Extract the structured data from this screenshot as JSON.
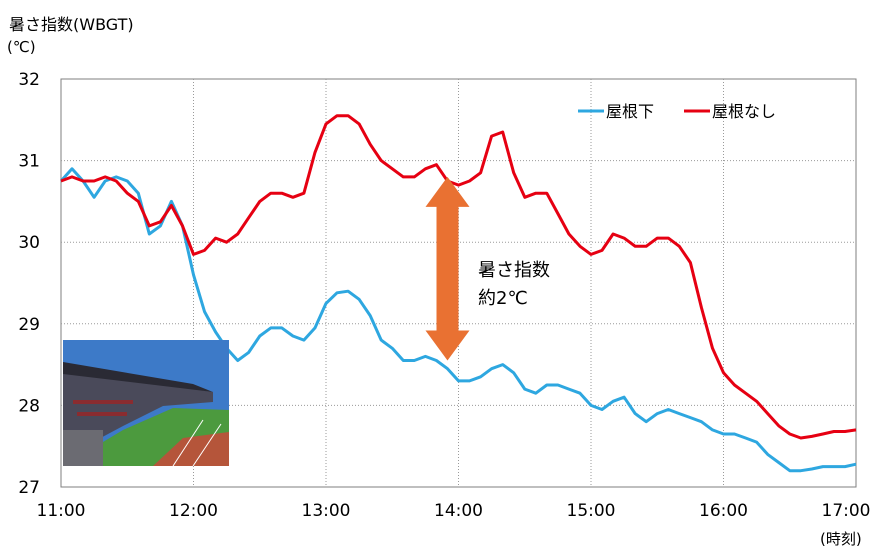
{
  "chart_data": {
    "type": "line",
    "ylabel": "暑さ指数(WBGT)",
    "yunit": "(℃)",
    "xunit": "(時刻)",
    "ylim": [
      27,
      32
    ],
    "xlim": [
      "11:00",
      "17:00"
    ],
    "yticks": [
      "27",
      "28",
      "29",
      "30",
      "31",
      "32"
    ],
    "xticks": [
      "11:00",
      "12:00",
      "13:00",
      "14:00",
      "15:00",
      "16:00",
      "17:00"
    ],
    "grid": "dotted",
    "legend_position": "top-right",
    "series": [
      {
        "name": "屋根下",
        "color": "#2ea7e0",
        "x": [
          "11:00",
          "11:05",
          "11:10",
          "11:15",
          "11:20",
          "11:25",
          "11:30",
          "11:35",
          "11:40",
          "11:45",
          "11:50",
          "11:55",
          "12:00",
          "12:05",
          "12:10",
          "12:15",
          "12:20",
          "12:25",
          "12:30",
          "12:35",
          "12:40",
          "12:45",
          "12:50",
          "12:55",
          "13:00",
          "13:05",
          "13:10",
          "13:15",
          "13:20",
          "13:25",
          "13:30",
          "13:35",
          "13:40",
          "13:45",
          "13:50",
          "13:55",
          "14:00",
          "14:05",
          "14:10",
          "14:15",
          "14:20",
          "14:25",
          "14:30",
          "14:35",
          "14:40",
          "14:45",
          "14:50",
          "14:55",
          "15:00",
          "15:05",
          "15:10",
          "15:15",
          "15:20",
          "15:25",
          "15:30",
          "15:35",
          "15:40",
          "15:45",
          "15:50",
          "15:55",
          "16:00",
          "16:05",
          "16:10",
          "16:15",
          "16:20",
          "16:25",
          "16:30",
          "16:35",
          "16:40",
          "16:45",
          "16:50",
          "16:55",
          "17:00"
        ],
        "values": [
          30.75,
          30.9,
          30.75,
          30.55,
          30.75,
          30.8,
          30.75,
          30.6,
          30.1,
          30.2,
          30.5,
          30.2,
          29.6,
          29.15,
          28.9,
          28.7,
          28.55,
          28.65,
          28.85,
          28.95,
          28.95,
          28.85,
          28.8,
          28.95,
          29.25,
          29.38,
          29.4,
          29.3,
          29.1,
          28.8,
          28.7,
          28.55,
          28.55,
          28.6,
          28.55,
          28.45,
          28.3,
          28.3,
          28.35,
          28.45,
          28.5,
          28.4,
          28.2,
          28.15,
          28.25,
          28.25,
          28.2,
          28.15,
          28.0,
          27.95,
          28.05,
          28.1,
          27.9,
          27.8,
          27.9,
          27.95,
          27.9,
          27.85,
          27.8,
          27.7,
          27.65,
          27.65,
          27.6,
          27.55,
          27.4,
          27.3,
          27.2,
          27.2,
          27.22,
          27.25,
          27.25,
          27.25,
          27.28
        ]
      },
      {
        "name": "屋根なし",
        "color": "#e60012",
        "x": [
          "11:00",
          "11:05",
          "11:10",
          "11:15",
          "11:20",
          "11:25",
          "11:30",
          "11:35",
          "11:40",
          "11:45",
          "11:50",
          "11:55",
          "12:00",
          "12:05",
          "12:10",
          "12:15",
          "12:20",
          "12:25",
          "12:30",
          "12:35",
          "12:40",
          "12:45",
          "12:50",
          "12:55",
          "13:00",
          "13:05",
          "13:10",
          "13:15",
          "13:20",
          "13:25",
          "13:30",
          "13:35",
          "13:40",
          "13:45",
          "13:50",
          "13:55",
          "14:00",
          "14:05",
          "14:10",
          "14:15",
          "14:20",
          "14:25",
          "14:30",
          "14:35",
          "14:40",
          "14:45",
          "14:50",
          "14:55",
          "15:00",
          "15:05",
          "15:10",
          "15:15",
          "15:20",
          "15:25",
          "15:30",
          "15:35",
          "15:40",
          "15:45",
          "15:50",
          "15:55",
          "16:00",
          "16:05",
          "16:10",
          "16:15",
          "16:20",
          "16:25",
          "16:30",
          "16:35",
          "16:40",
          "16:45",
          "16:50",
          "16:55",
          "17:00"
        ],
        "values": [
          30.75,
          30.8,
          30.75,
          30.75,
          30.8,
          30.75,
          30.6,
          30.5,
          30.2,
          30.25,
          30.45,
          30.2,
          29.85,
          29.9,
          30.05,
          30.0,
          30.1,
          30.3,
          30.5,
          30.6,
          30.6,
          30.55,
          30.6,
          31.1,
          31.45,
          31.55,
          31.55,
          31.45,
          31.2,
          31.0,
          30.9,
          30.8,
          30.8,
          30.9,
          30.95,
          30.75,
          30.7,
          30.75,
          30.85,
          31.3,
          31.35,
          30.85,
          30.55,
          30.6,
          30.6,
          30.35,
          30.1,
          29.95,
          29.85,
          29.9,
          30.1,
          30.05,
          29.95,
          29.95,
          30.05,
          30.05,
          29.95,
          29.75,
          29.2,
          28.7,
          28.4,
          28.25,
          28.15,
          28.05,
          27.9,
          27.75,
          27.65,
          27.6,
          27.62,
          27.65,
          27.68,
          27.68,
          27.7
        ]
      }
    ],
    "annotation": {
      "line1": "暑さ指数",
      "line2": "約2℃",
      "arrow_color": "#e97132",
      "at": "13:55",
      "from": 28.55,
      "to": 30.8
    }
  },
  "photo": {
    "sky": "#3d7ac8",
    "stand": "#4a4a5a",
    "field": "#4c9a3e",
    "track": "#b5553a"
  }
}
